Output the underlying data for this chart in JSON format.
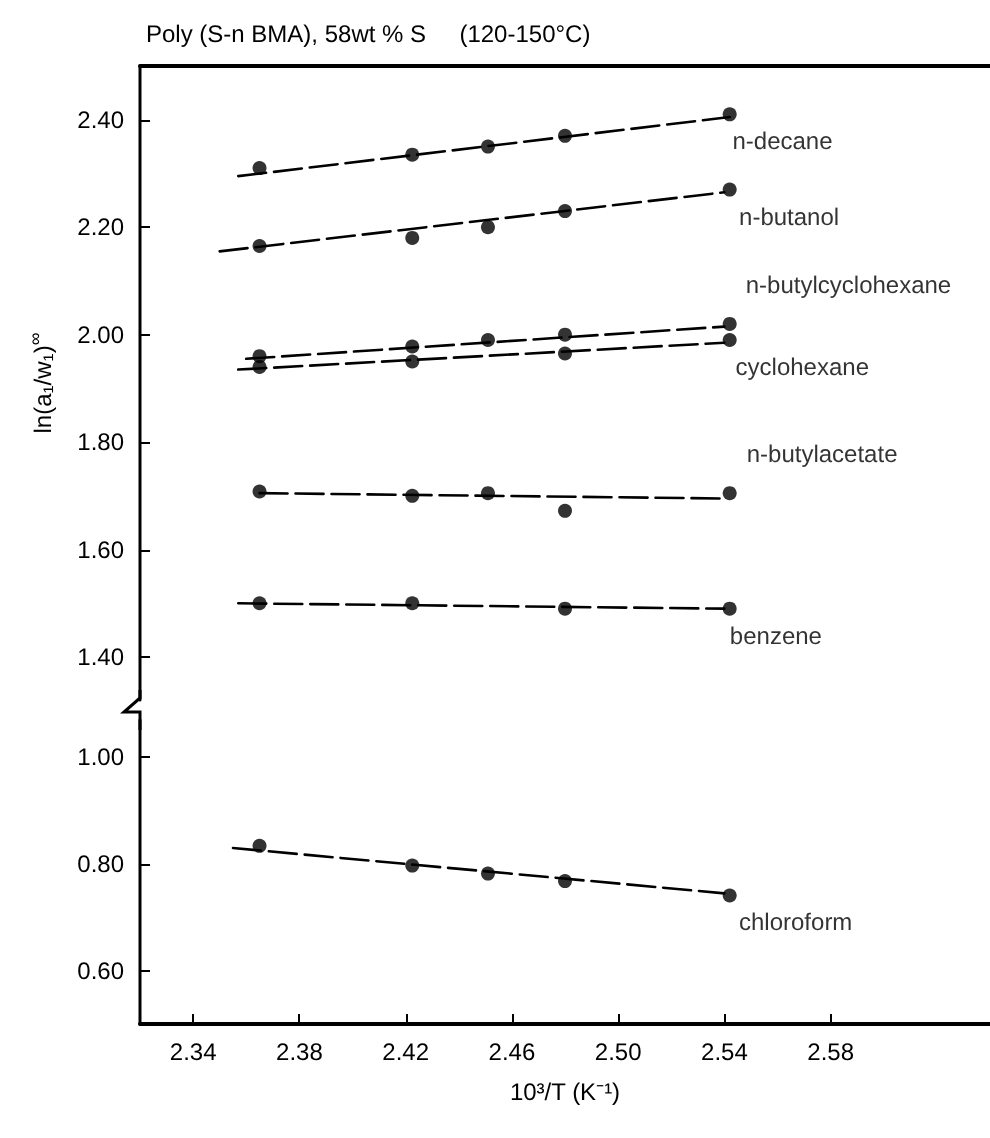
{
  "chart_data": [
    {
      "type": "scatter",
      "title": "Poly (S-n BMA), 58wt % S     (120-150°C)",
      "ylabel": "ln(a₁/w₁)$^{∞}$",
      "xlim": [
        2.32,
        2.64
      ],
      "ylim": [
        1.32,
        2.5
      ],
      "yticks": [
        {
          "value": 1.4,
          "label": "1.40"
        },
        {
          "value": 1.6,
          "label": "1.60"
        },
        {
          "value": 1.8,
          "label": "1.80"
        },
        {
          "value": 2.0,
          "label": "2.00"
        },
        {
          "value": 2.2,
          "label": "2.20"
        },
        {
          "value": 2.4,
          "label": "2.40"
        }
      ],
      "tick_labels": "y",
      "marker": "circle",
      "series": [
        {
          "name": "n-decane",
          "color": "#000000",
          "x": [
            2.365,
            2.4225,
            2.451,
            2.48,
            2.542
          ],
          "values": [
            2.31,
            2.335,
            2.35,
            2.37,
            2.41
          ]
        },
        {
          "name": "n-butanol",
          "color": "#000000",
          "x": [
            2.365,
            2.4225,
            2.451,
            2.48,
            2.542
          ],
          "values": [
            2.165,
            2.18,
            2.2,
            2.23,
            2.27
          ]
        },
        {
          "name": "n-butylcyclohexane",
          "color": "#000000",
          "x": [
            2.365,
            2.4225,
            2.451,
            2.48,
            2.542
          ],
          "values": [
            1.96,
            1.978,
            1.99,
            2.0,
            2.02
          ]
        },
        {
          "name": "cyclohexane",
          "color": "#000000",
          "x": [
            2.365,
            2.4225,
            2.48,
            2.542
          ],
          "values": [
            1.94,
            1.95,
            1.965,
            1.99
          ]
        },
        {
          "name": "n-butylacetate",
          "color": "#000000",
          "x": [
            2.365,
            2.4225,
            2.451,
            2.48,
            2.542
          ],
          "values": [
            1.708,
            1.7,
            1.705,
            1.672,
            1.705
          ]
        },
        {
          "name": "benzene",
          "color": "#000000",
          "x": [
            2.365,
            2.4225,
            2.48,
            2.542
          ],
          "values": [
            1.5,
            1.5,
            1.49,
            1.49
          ]
        },
        {
          "type": "line",
          "color": "#000000",
          "marker": "none",
          "line_style": "dashed",
          "x": [
            2.357,
            2.542
          ],
          "values": [
            2.295,
            2.405
          ]
        },
        {
          "type": "line",
          "color": "#000000",
          "marker": "none",
          "line_style": "dashed",
          "x": [
            2.35,
            2.54
          ],
          "values": [
            2.155,
            2.265
          ]
        },
        {
          "type": "line",
          "color": "#000000",
          "marker": "none",
          "line_style": "dashed",
          "x": [
            2.36,
            2.54
          ],
          "values": [
            1.955,
            2.015
          ]
        },
        {
          "type": "line",
          "color": "#000000",
          "marker": "none",
          "line_style": "dashed",
          "x": [
            2.357,
            2.54
          ],
          "values": [
            1.935,
            1.985
          ]
        },
        {
          "type": "line",
          "color": "#000000",
          "marker": "none",
          "line_style": "dashed",
          "x": [
            2.365,
            2.54
          ],
          "values": [
            1.705,
            1.695
          ]
        },
        {
          "type": "line",
          "color": "#000000",
          "marker": "none",
          "line_style": "dashed",
          "x": [
            2.357,
            2.54
          ],
          "values": [
            1.5,
            1.49
          ]
        }
      ]
    },
    {
      "type": "scatter",
      "xlabel": "10³/T (K⁻¹)",
      "xlim": [
        2.32,
        2.64
      ],
      "xticks": [
        2.34,
        2.38,
        2.42,
        2.46,
        {
          "value": 2.5,
          "label": "2.50"
        },
        2.54,
        2.58
      ],
      "ylim": [
        0.5,
        1.07
      ],
      "yticks": [
        {
          "value": 0.6,
          "label": "0.60"
        },
        {
          "value": 0.8,
          "label": "0.80"
        },
        {
          "value": 1.0,
          "label": "1.00"
        }
      ],
      "marker": "circle",
      "series": [
        {
          "name": "chloroform",
          "color": "#000000",
          "x": [
            2.365,
            2.4225,
            2.451,
            2.48,
            2.542
          ],
          "values": [
            0.834,
            0.797,
            0.782,
            0.768,
            0.741
          ]
        },
        {
          "type": "line",
          "color": "#000000",
          "marker": "none",
          "line_style": "dashed",
          "x": [
            2.355,
            2.54
          ],
          "values": [
            0.83,
            0.745
          ]
        }
      ]
    }
  ]
}
